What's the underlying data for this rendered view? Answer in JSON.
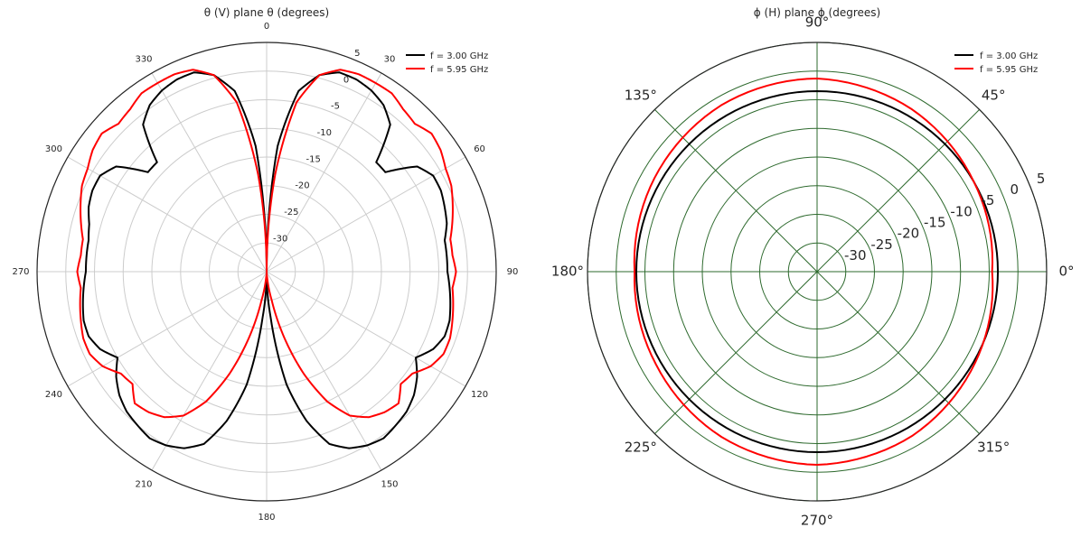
{
  "chart_data": [
    {
      "type": "line",
      "projection": "polar",
      "title": "θ (V) plane θ (degrees)",
      "theta_zero_location": "top",
      "theta_direction": "clockwise",
      "angle_tick_labels": [
        "0",
        "30",
        "60",
        "90",
        "120",
        "150",
        "180",
        "210",
        "240",
        "270",
        "300",
        "330"
      ],
      "radial_tick_values": [
        -30,
        -25,
        -20,
        -15,
        -10,
        -5,
        0,
        5
      ],
      "radial_tick_labels": [
        "-30",
        "-25",
        "-20",
        "-15",
        "-10",
        "-5",
        "0",
        "5"
      ],
      "rlim": [
        -35,
        5
      ],
      "grid": true,
      "legend_position": "top-right",
      "series": [
        {
          "name": "f = 3.00 GHz",
          "color": "#000000",
          "theta_deg": [
            0,
            5,
            10,
            15,
            20,
            25,
            30,
            35,
            40,
            45,
            50,
            55,
            60,
            65,
            70,
            75,
            80,
            85,
            90,
            95,
            100,
            105,
            110,
            115,
            120,
            125,
            130,
            135,
            140,
            145,
            150,
            155,
            160,
            165,
            170,
            175,
            180,
            185,
            190,
            195,
            200,
            205,
            210,
            215,
            220,
            225,
            230,
            235,
            240,
            245,
            250,
            255,
            260,
            265,
            270,
            275,
            280,
            285,
            290,
            295,
            300,
            305,
            310,
            315,
            320,
            325,
            330,
            335,
            340,
            345,
            350,
            355,
            360
          ],
          "values_db": [
            -35,
            -13,
            -3,
            0.5,
            2,
            2,
            1.5,
            0.5,
            -1.5,
            -8,
            -8,
            -3,
            -1.5,
            -1.5,
            -2,
            -2.5,
            -3.5,
            -3.5,
            -3.5,
            -3,
            -2.5,
            -2,
            -2,
            -3,
            -5,
            -3,
            -1.5,
            -0.5,
            0,
            0.5,
            0,
            -1,
            -3,
            -8,
            -15,
            -27,
            -35,
            -27,
            -15,
            -8,
            -3,
            -1,
            0,
            0.5,
            0,
            -0.5,
            -1.5,
            -3,
            -5,
            -3,
            -2,
            -2,
            -2.5,
            -3,
            -3.5,
            -3.5,
            -3.5,
            -3,
            -2,
            -1.5,
            -1.5,
            -3,
            -8,
            -8,
            -1.5,
            0.5,
            1.5,
            2,
            2,
            0.5,
            -3,
            -13,
            -35
          ]
        },
        {
          "name": "f = 5.95 GHz",
          "color": "#ff0000",
          "theta_deg": [
            0,
            5,
            10,
            15,
            20,
            25,
            30,
            35,
            40,
            45,
            50,
            55,
            60,
            65,
            70,
            75,
            80,
            85,
            90,
            95,
            100,
            105,
            110,
            115,
            120,
            125,
            130,
            135,
            140,
            145,
            150,
            155,
            160,
            165,
            170,
            175,
            180,
            185,
            190,
            195,
            200,
            205,
            210,
            215,
            220,
            225,
            230,
            235,
            240,
            245,
            250,
            255,
            260,
            265,
            270,
            275,
            280,
            285,
            290,
            295,
            300,
            305,
            310,
            315,
            320,
            325,
            330,
            335,
            340,
            345,
            350,
            355,
            360
          ],
          "values_db": [
            -35,
            -18,
            -5,
            0.5,
            2.5,
            3,
            3,
            3,
            2,
            1.5,
            2.5,
            2,
            1,
            0.5,
            -0.5,
            -1.5,
            -2.5,
            -2.5,
            -2,
            -2.5,
            -2,
            -1.5,
            -1,
            -1,
            -2,
            -4,
            -4.5,
            -2.5,
            -3,
            -4,
            -6,
            -10,
            -16,
            -23,
            -30,
            -34,
            -35,
            -34,
            -30,
            -23,
            -16,
            -10,
            -6,
            -4,
            -3,
            -2.5,
            -4.5,
            -4,
            -2,
            -1,
            -1,
            -1.5,
            -2,
            -2.5,
            -2,
            -2.5,
            -2.5,
            -1.5,
            -0.5,
            0.5,
            1,
            2,
            2.5,
            1.5,
            2,
            3,
            3,
            3,
            2.5,
            0.5,
            -5,
            -18,
            -35
          ]
        }
      ]
    },
    {
      "type": "line",
      "projection": "polar",
      "title": "ϕ (H) plane ϕ (degrees)",
      "theta_zero_location": "right",
      "theta_direction": "counterclockwise",
      "angle_tick_labels": [
        "0°",
        "45°",
        "90°",
        "135°",
        "180°",
        "225°",
        "270°",
        "315°"
      ],
      "radial_tick_values": [
        -30,
        -25,
        -20,
        -15,
        -10,
        -5,
        0,
        5
      ],
      "radial_tick_labels": [
        "-30",
        "-25",
        "-20",
        "-15",
        "-10",
        "-5",
        "0",
        "5"
      ],
      "rlim": [
        -35,
        5
      ],
      "grid": true,
      "legend_position": "top-right",
      "series": [
        {
          "name": "f = 3.00 GHz",
          "color": "#000000",
          "phi_deg": [
            0,
            30,
            60,
            90,
            120,
            150,
            180,
            210,
            240,
            270,
            300,
            330,
            360
          ],
          "values_db": [
            -3.5,
            -3.5,
            -3.5,
            -3.5,
            -3.5,
            -3.5,
            -3.5,
            -3.5,
            -3.5,
            -3.5,
            -3.5,
            -3.5,
            -3.5
          ]
        },
        {
          "name": "f = 5.95 GHz",
          "color": "#ff0000",
          "phi_deg": [
            0,
            30,
            60,
            90,
            120,
            150,
            180,
            210,
            240,
            270,
            300,
            330,
            360
          ],
          "values_db": [
            -4.5,
            -3.5,
            -2.2,
            -1.3,
            -1.5,
            -2.3,
            -3.2,
            -2.6,
            -1.7,
            -1.3,
            -1.9,
            -3.2,
            -4.5
          ]
        }
      ]
    }
  ]
}
